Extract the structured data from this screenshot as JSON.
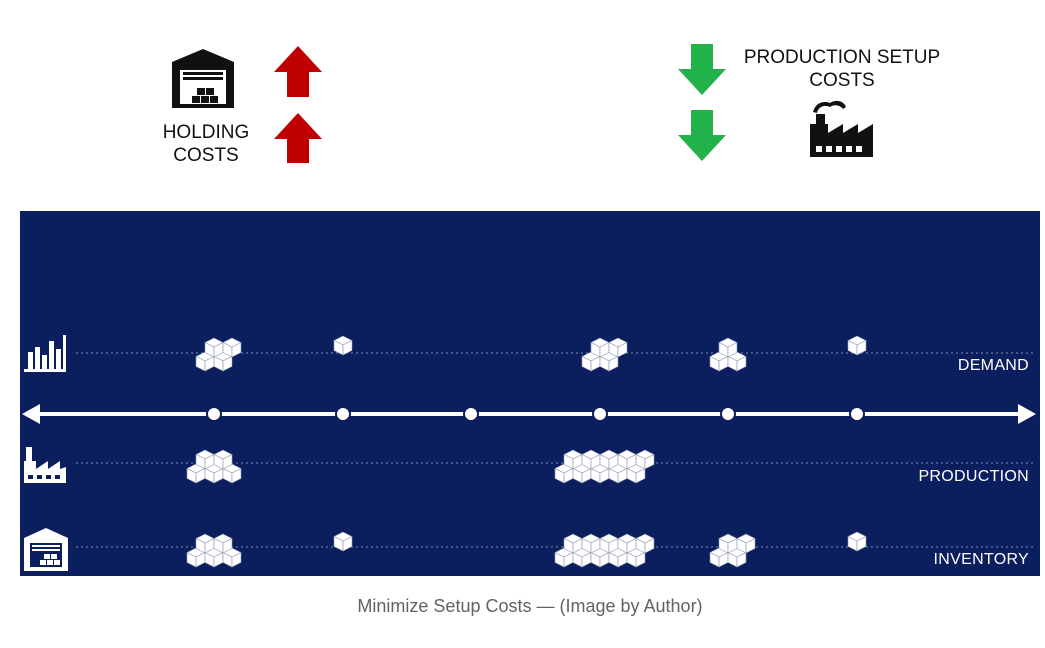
{
  "top": {
    "holding_label_line1": "HOLDING",
    "holding_label_line2": "COSTS",
    "setup_label_line1": "PRODUCTION SETUP",
    "setup_label_line2": "COSTS",
    "up_arrow_color": "#c00000",
    "down_arrow_color": "#21b24a",
    "icons": [
      "warehouse-icon",
      "factory-icon"
    ]
  },
  "timeline": {
    "background_color": "#0b1f5e",
    "period_markers": 6,
    "rows": [
      {
        "label": "DEMAND",
        "icon": "bar-chart-icon",
        "box_counts": [
          4,
          1,
          0,
          4,
          3,
          1
        ]
      },
      {
        "label": "PRODUCTION",
        "icon": "factory-icon",
        "box_counts": [
          5,
          0,
          0,
          10,
          0,
          0
        ]
      },
      {
        "label": "INVENTORY",
        "icon": "warehouse-icon",
        "box_counts": [
          5,
          1,
          0,
          10,
          4,
          1
        ]
      }
    ]
  },
  "caption": "Minimize Setup Costs — (Image by Author)"
}
